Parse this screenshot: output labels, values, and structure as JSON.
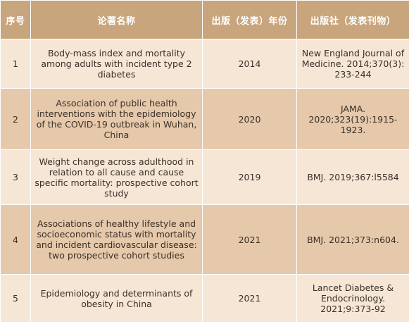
{
  "headers": {
    "no": "序号",
    "title": "论著名称",
    "year": "出版（发表）年份",
    "publisher": "出版社（发表刊物）"
  },
  "rows": [
    {
      "no": "1",
      "title": "Body-mass index and mortality among adults with incident type 2 diabetes",
      "year": "2014",
      "publisher": "New England Journal of Medicine. 2014;370(3): 233-244"
    },
    {
      "no": "2",
      "title": "Association of public health interventions with the epidemiology of the COVID-19 outbreak in Wuhan, China",
      "year": "2020",
      "publisher": "JAMA. 2020;323(19):1915-1923."
    },
    {
      "no": "3",
      "title": "Weight change across adulthood in relation to all cause and cause specific mortality: prospective cohort study",
      "year": "2019",
      "publisher": "BMJ. 2019;367:l5584"
    },
    {
      "no": "4",
      "title": "Associations of healthy lifestyle and socioeconomic status with mortality and incident cardiovascular disease: two prospective cohort studies",
      "year": "2021",
      "publisher": "BMJ. 2021;373:n604."
    },
    {
      "no": "5",
      "title": "Epidemiology and determinants of obesity in China",
      "year": "2021",
      "publisher": "Lancet Diabetes & Endocrinology. 2021;9:373-92"
    }
  ]
}
